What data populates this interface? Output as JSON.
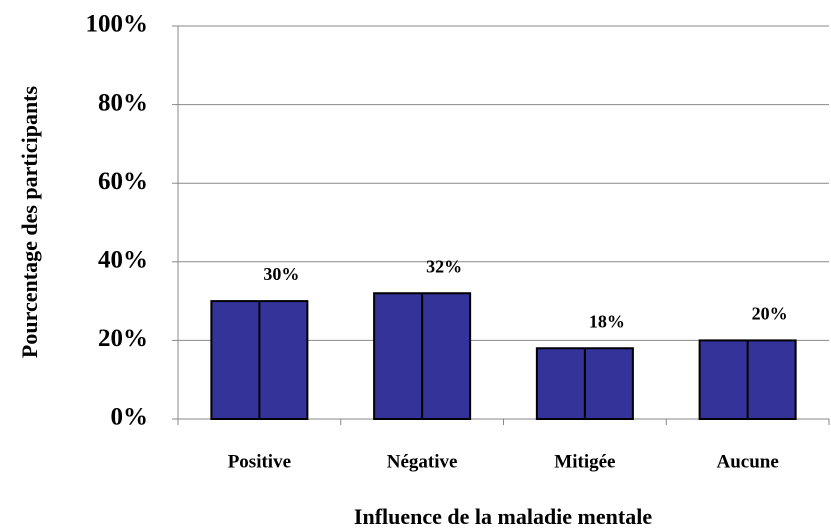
{
  "chart_data": {
    "type": "bar",
    "x_label": "Influence de la maladie mentale",
    "y_label": "Pourcentage des participants",
    "categories": [
      "Positive",
      "Négative",
      "Mitigée",
      "Aucune"
    ],
    "values": [
      30,
      32,
      18,
      20
    ],
    "value_labels": [
      "30%",
      "32%",
      "18%",
      "20%"
    ],
    "color": "#333399",
    "ylim": [
      0,
      100
    ],
    "yticks": [
      {
        "value": 0,
        "label": "0%"
      },
      {
        "value": 20,
        "label": "20%"
      },
      {
        "value": 40,
        "label": "40%"
      },
      {
        "value": 60,
        "label": "60%"
      },
      {
        "value": 80,
        "label": "80%"
      },
      {
        "value": 100,
        "label": "100%"
      }
    ],
    "grid": true
  }
}
